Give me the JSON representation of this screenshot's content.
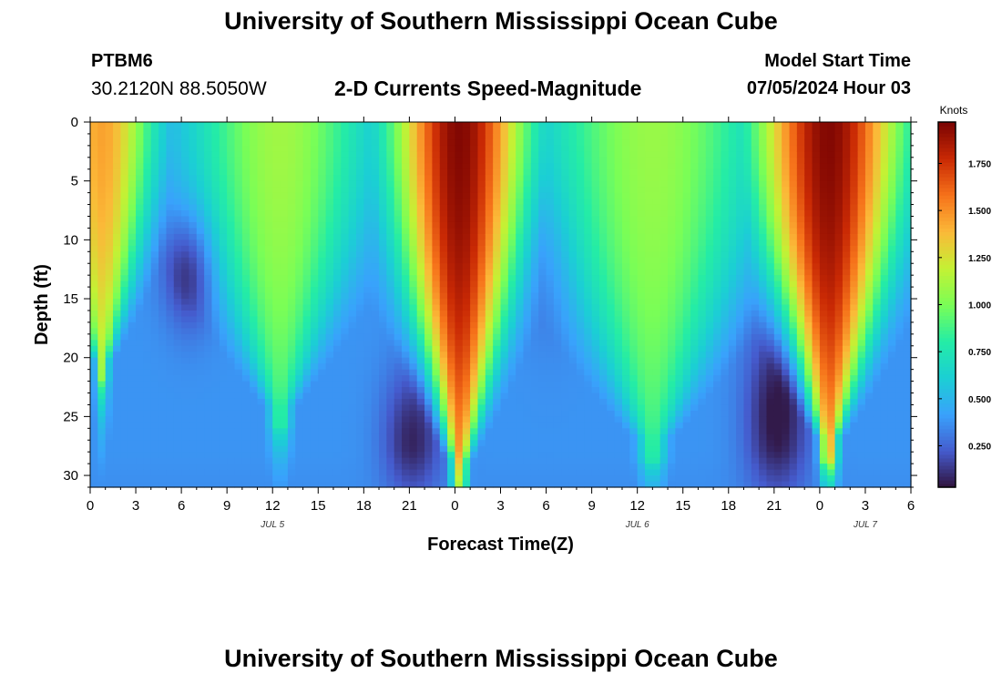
{
  "header": {
    "title": "University of Southern Mississippi Ocean Cube",
    "station_id": "PTBM6",
    "coordinates": "30.2120N  88.5050W",
    "start_label": "Model Start Time",
    "start_value": "07/05/2024 Hour 03"
  },
  "footer": {
    "title": "University of Southern Mississippi Ocean Cube"
  },
  "chart_data": {
    "type": "heatmap",
    "title": "2-D Currents Speed-Magnitude",
    "xlabel": "Forecast Time(Z)",
    "ylabel": "Depth (ft)",
    "x_tick_labels": [
      "0",
      "3",
      "6",
      "9",
      "12",
      "15",
      "18",
      "21",
      "0",
      "3",
      "6",
      "9",
      "12",
      "15",
      "18",
      "21",
      "0",
      "3",
      "6"
    ],
    "x_range_hours": [
      0,
      54
    ],
    "date_labels": [
      {
        "label": "JUL 5",
        "hour": 12
      },
      {
        "label": "JUL 6",
        "hour": 36
      },
      {
        "label": "JUL 7",
        "hour": 51
      }
    ],
    "y_tick_labels": [
      "0",
      "5",
      "10",
      "15",
      "20",
      "25",
      "30"
    ],
    "y_ticks": [
      0,
      5,
      10,
      15,
      20,
      25,
      30
    ],
    "y_range": [
      0,
      31
    ],
    "y_inverted": true,
    "colorbar": {
      "title": "Knots",
      "tick_labels": [
        "0.250",
        "0.500",
        "0.750",
        "1.000",
        "1.250",
        "1.500",
        "1.750"
      ],
      "ticks": [
        0.25,
        0.5,
        0.75,
        1.0,
        1.25,
        1.5,
        1.75
      ],
      "range": [
        0.03,
        1.97
      ],
      "colormap": "turbo"
    },
    "key_points": [
      {
        "hour": 1,
        "depth": 5,
        "value": 1.45
      },
      {
        "hour": 6.5,
        "depth": 13,
        "value": 0.12
      },
      {
        "hour": 12.5,
        "depth": 5,
        "value": 1.15
      },
      {
        "hour": 21,
        "depth": 28,
        "value": 0.15
      },
      {
        "hour": 24,
        "depth": 5,
        "value": 1.95
      },
      {
        "hour": 30,
        "depth": 12,
        "value": 0.35
      },
      {
        "hour": 37,
        "depth": 5,
        "value": 1.1
      },
      {
        "hour": 45,
        "depth": 26,
        "value": 0.05
      },
      {
        "hour": 48,
        "depth": 5,
        "value": 1.95
      },
      {
        "hour": 54,
        "depth": 5,
        "value": 0.8
      }
    ]
  }
}
